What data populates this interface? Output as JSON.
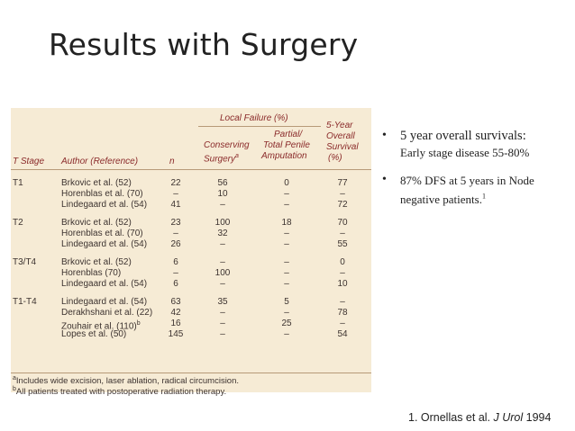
{
  "title": "Results with Surgery",
  "table": {
    "group_header": "Local Failure (%)",
    "columns": {
      "t_stage": "T Stage",
      "author": "Author (Reference)",
      "n": "n",
      "conserving": "Conserving",
      "conserving2": "Surgery",
      "conserving_sup": "a",
      "partial": "Partial/",
      "partial2": "Total Penile",
      "partial3": "Amputation",
      "survival": "5-Year",
      "survival2": "Overall",
      "survival3": "Survival",
      "survival4": "(%)"
    },
    "rows": [
      {
        "stage": "T1",
        "author": "Brkovic et al. (52)",
        "n": "22",
        "cons": "56",
        "partial": "0",
        "surv": "77"
      },
      {
        "stage": "",
        "author": "Horenblas et al. (70)",
        "n": "–",
        "cons": "10",
        "partial": "–",
        "surv": "–"
      },
      {
        "stage": "",
        "author": "Lindegaard et al. (54)",
        "n": "41",
        "cons": "–",
        "partial": "–",
        "surv": "72"
      },
      {
        "stage": "T2",
        "author": "Brkovic et al. (52)",
        "n": "23",
        "cons": "100",
        "partial": "18",
        "surv": "70"
      },
      {
        "stage": "",
        "author": "Horenblas et al. (70)",
        "n": "–",
        "cons": "32",
        "partial": "–",
        "surv": "–"
      },
      {
        "stage": "",
        "author": "Lindegaard et al. (54)",
        "n": "26",
        "cons": "–",
        "partial": "–",
        "surv": "55"
      },
      {
        "stage": "T3/T4",
        "author": "Brkovic et al. (52)",
        "n": "6",
        "cons": "–",
        "partial": "–",
        "surv": "0"
      },
      {
        "stage": "",
        "author": "Horenblas (70)",
        "n": "–",
        "cons": "100",
        "partial": "–",
        "surv": "–"
      },
      {
        "stage": "",
        "author": "Lindegaard et al. (54)",
        "n": "6",
        "cons": "–",
        "partial": "–",
        "surv": "10"
      },
      {
        "stage": "T1-T4",
        "author": "Lindegaard et al. (54)",
        "n": "63",
        "cons": "35",
        "partial": "5",
        "surv": "–"
      },
      {
        "stage": "",
        "author": "Derakhshani et al. (22)",
        "n": "42",
        "cons": "–",
        "partial": "–",
        "surv": "78"
      },
      {
        "stage": "",
        "author": "Zouhair et al. (110)",
        "author_sup": "b",
        "n": "16",
        "cons": "–",
        "partial": "25",
        "surv": "–"
      },
      {
        "stage": "",
        "author": "Lopes et al. (50)",
        "n": "145",
        "cons": "–",
        "partial": "–",
        "surv": "54"
      }
    ],
    "footnotes": [
      {
        "mark": "a",
        "text": "Includes wide excision, laser ablation, radical circumcision."
      },
      {
        "mark": "b",
        "text": "All patients treated with postoperative radiation therapy."
      }
    ]
  },
  "bullets": [
    {
      "main": "5 year overall survivals:",
      "sub": "Early stage disease 55-80%"
    },
    {
      "text": "87% DFS at 5 years in Node negative patients.",
      "sup": "1"
    }
  ],
  "bullet_char": "•",
  "reference": {
    "prefix": "1. Ornellas et al. ",
    "journal": "J Urol",
    "year": " 1994"
  }
}
